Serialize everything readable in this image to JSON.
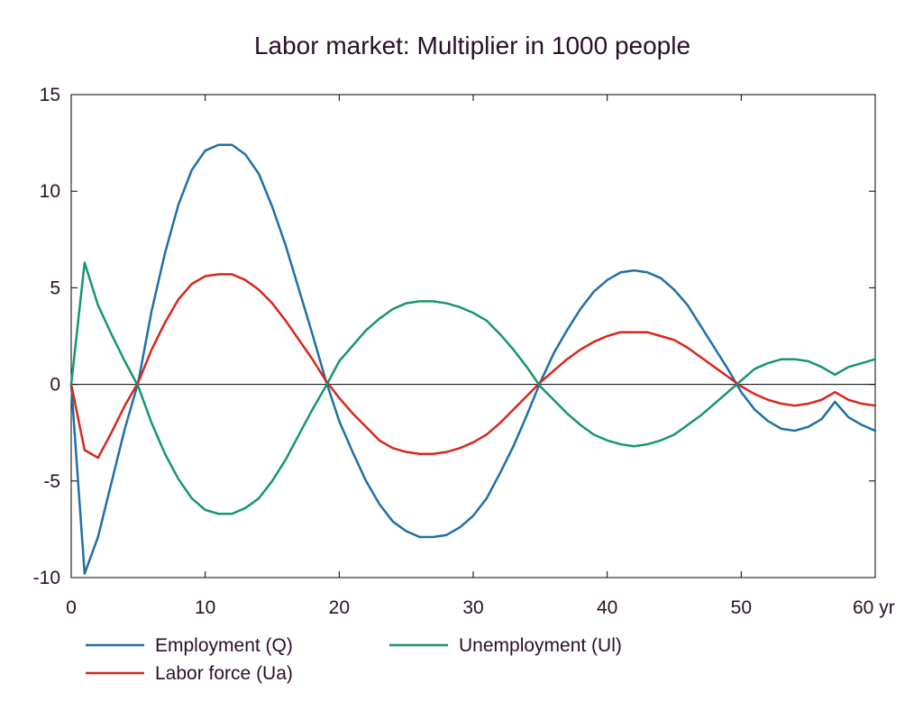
{
  "chart_data": {
    "type": "line",
    "title": "Labor market: Multiplier in 1000 people",
    "xlabel": "",
    "ylabel": "",
    "x_unit": "yr",
    "xlim": [
      0,
      60
    ],
    "ylim": [
      -10,
      15
    ],
    "x_ticks": [
      0,
      10,
      20,
      30,
      40,
      50,
      60
    ],
    "y_ticks": [
      -10,
      -5,
      0,
      5,
      10,
      15
    ],
    "grid": false,
    "zero_line": true,
    "legend_position": "bottom",
    "x": [
      0,
      1,
      2,
      3,
      4,
      5,
      6,
      7,
      8,
      9,
      10,
      11,
      12,
      13,
      14,
      15,
      16,
      17,
      18,
      19,
      20,
      21,
      22,
      23,
      24,
      25,
      26,
      27,
      28,
      29,
      30,
      31,
      32,
      33,
      34,
      35,
      36,
      37,
      38,
      39,
      40,
      41,
      42,
      43,
      44,
      45,
      46,
      47,
      48,
      49,
      50,
      51,
      52,
      53,
      54,
      55,
      56,
      57,
      58,
      59,
      60
    ],
    "series": [
      {
        "name": "Employment (Q)",
        "color": "#1f6fa8",
        "values": [
          0,
          -9.8,
          -7.9,
          -5.1,
          -2.3,
          0.1,
          3.8,
          6.8,
          9.3,
          11.1,
          12.1,
          12.4,
          12.4,
          11.9,
          10.9,
          9.2,
          7.2,
          4.9,
          2.6,
          0.2,
          -1.9,
          -3.5,
          -5.0,
          -6.2,
          -7.1,
          -7.6,
          -7.9,
          -7.9,
          -7.8,
          -7.4,
          -6.8,
          -5.9,
          -4.6,
          -3.2,
          -1.6,
          0.1,
          1.6,
          2.8,
          3.9,
          4.8,
          5.4,
          5.8,
          5.9,
          5.8,
          5.5,
          4.9,
          4.1,
          3.0,
          1.9,
          0.8,
          -0.4,
          -1.3,
          -1.9,
          -2.3,
          -2.4,
          -2.2,
          -1.8,
          -0.9,
          -1.7,
          -2.1,
          -2.4
        ]
      },
      {
        "name": "Labor force (Ua)",
        "color": "#d9261c",
        "values": [
          0,
          -3.4,
          -3.8,
          -2.5,
          -1.1,
          0.1,
          1.8,
          3.2,
          4.4,
          5.2,
          5.6,
          5.7,
          5.7,
          5.4,
          4.9,
          4.2,
          3.3,
          2.3,
          1.3,
          0.2,
          -0.7,
          -1.5,
          -2.2,
          -2.9,
          -3.3,
          -3.5,
          -3.6,
          -3.6,
          -3.5,
          -3.3,
          -3.0,
          -2.6,
          -2.0,
          -1.3,
          -0.6,
          0.1,
          0.7,
          1.3,
          1.8,
          2.2,
          2.5,
          2.7,
          2.7,
          2.7,
          2.5,
          2.3,
          1.9,
          1.4,
          0.9,
          0.4,
          -0.1,
          -0.5,
          -0.8,
          -1.0,
          -1.1,
          -1.0,
          -0.8,
          -0.4,
          -0.8,
          -1.0,
          -1.1
        ]
      },
      {
        "name": "Unemployment (Ul)",
        "color": "#14966e",
        "values": [
          0,
          6.3,
          4.1,
          2.6,
          1.2,
          -0.1,
          -2.0,
          -3.6,
          -4.9,
          -5.9,
          -6.5,
          -6.7,
          -6.7,
          -6.4,
          -5.9,
          -5.0,
          -3.9,
          -2.6,
          -1.3,
          -0.1,
          1.2,
          2.0,
          2.8,
          3.4,
          3.9,
          4.2,
          4.3,
          4.3,
          4.2,
          4.0,
          3.7,
          3.3,
          2.6,
          1.8,
          0.9,
          -0.1,
          -0.8,
          -1.5,
          -2.1,
          -2.6,
          -2.9,
          -3.1,
          -3.2,
          -3.1,
          -2.9,
          -2.6,
          -2.1,
          -1.6,
          -1.0,
          -0.4,
          0.2,
          0.8,
          1.1,
          1.3,
          1.3,
          1.2,
          0.9,
          0.5,
          0.9,
          1.1,
          1.3
        ]
      }
    ]
  }
}
